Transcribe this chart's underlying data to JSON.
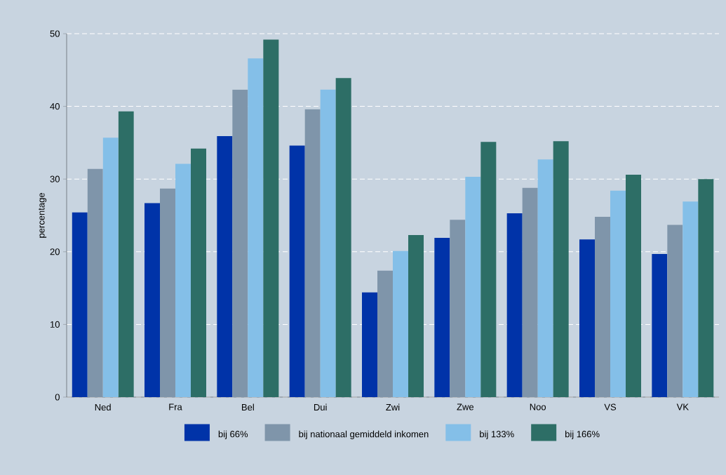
{
  "chart_data": {
    "type": "bar",
    "ylabel": "percentage",
    "categories": [
      "Ned",
      "Fra",
      "Bel",
      "Dui",
      "Zwi",
      "Zwe",
      "Noo",
      "VS",
      "VK"
    ],
    "series": [
      {
        "name": "bij 66%",
        "color": "#0033a8",
        "values": [
          25.4,
          26.7,
          35.9,
          34.6,
          14.4,
          21.9,
          25.3,
          21.7,
          19.7
        ]
      },
      {
        "name": "bij nationaal gemiddeld inkomen",
        "color": "#7f95aa",
        "values": [
          31.4,
          28.7,
          42.3,
          39.6,
          17.4,
          24.4,
          28.8,
          24.8,
          23.7
        ]
      },
      {
        "name": "bij 133%",
        "color": "#84bfe8",
        "values": [
          35.7,
          32.1,
          46.6,
          42.3,
          20.1,
          30.3,
          32.7,
          28.4,
          26.9
        ]
      },
      {
        "name": "bij 166%",
        "color": "#2d6e66",
        "values": [
          39.3,
          34.2,
          49.2,
          43.9,
          22.3,
          35.1,
          35.2,
          30.6,
          30.0
        ]
      }
    ],
    "ylim": [
      0,
      50
    ],
    "yticks": [
      0,
      10,
      20,
      30,
      40,
      50
    ],
    "grid": "y",
    "legend": "bottom"
  }
}
